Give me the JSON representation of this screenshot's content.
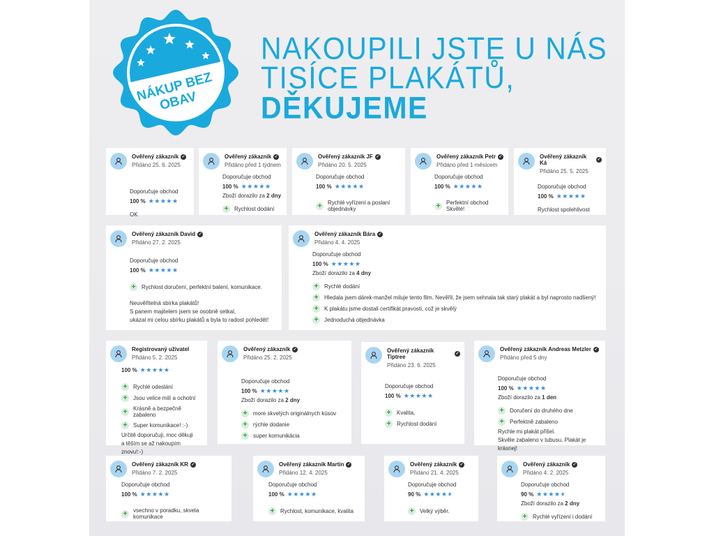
{
  "badge": {
    "line1": "NÁKUP BEZ",
    "line2": "OBAV",
    "color": "#1aa9dc",
    "stars": 5
  },
  "headline": {
    "line1": "NAKOUPILI JSTE U NÁS",
    "line2": "TISÍCE PLAKÁTŮ,",
    "line3": "DĚKUJEME",
    "color": "#1aa9dc"
  },
  "colors": {
    "star": "#3b8ed8",
    "avatar": "#a9d5f2",
    "plus": "#2f9a3e"
  },
  "reviews": [
    {
      "name": "Ověřený zákazník",
      "verified": true,
      "date": "Přidáno 25. 6. 2025",
      "recommend": "Doporučuje obchod",
      "percent": "100 %",
      "rating": 5,
      "pros": [],
      "text": [
        "OK"
      ]
    },
    {
      "name": "Ověřený zákazník",
      "verified": true,
      "date": "Přidáno před 1 týdnem",
      "recommend": "Doporučuje obchod",
      "percent": "100 %",
      "rating": 5,
      "delivery_prefix": "Zboží dorazilo za",
      "delivery_value": "2 dny",
      "pros": [
        "Rychlost dodání"
      ],
      "text": []
    },
    {
      "name": "Ověřený zákazník JF",
      "verified": true,
      "date": "Přidáno 20. 5. 2025",
      "recommend": "Doporučuje obchod",
      "percent": "100 %",
      "rating": 5,
      "pros": [
        "Rychlé vyřízení a poslaní objednávky"
      ],
      "text": []
    },
    {
      "name": "Ověřený zákazník Petr",
      "verified": true,
      "date": "Přidáno před 1 měsícem",
      "recommend": "Doporučuje obchod",
      "percent": "100 %",
      "rating": 5,
      "pros": [
        "Perfektní obchod Skvělé!"
      ],
      "text": []
    },
    {
      "name": "Ověřený zákazník Ká",
      "verified": true,
      "date": "Přidáno 25. 5. 2025",
      "recommend": "Doporučuje obchod",
      "percent": "100 %",
      "rating": 5,
      "pros": [],
      "text": [
        "Rychlost spolehlivost"
      ]
    },
    {
      "name": "Ověřený zákazník David",
      "verified": true,
      "date": "Přidáno 27. 2. 2025",
      "recommend": "Doporučuje obchod",
      "percent": "100 %",
      "rating": 5,
      "pros": [
        "Rychlost doručení, perfektní balení, komunikace."
      ],
      "text": [
        "Neuvěřitelná sbírka plakátů!",
        "S panem majitelem jsem se osobně setkal,",
        "ukázal mi celou sbírku plakátů a byla to radost pohledět!"
      ]
    },
    {
      "name": "Ověřený zákazník Bára",
      "verified": true,
      "date": "Přidáno 4. 4. 2025",
      "recommend": "Doporučuje obchod",
      "percent": "100 %",
      "rating": 5,
      "delivery_prefix": "Zboží dorazilo za",
      "delivery_value": "4 dny",
      "pros": [
        "Rychlé dodání",
        "Hledala jsem dárek-manžel miluje tento film. Nevěřil, že jsem sehnala tak starý plakát a byl naprosto nadšený!",
        "K plakátu jsme dostali certifikát pravosti, což je skvělý",
        "Jednoduchá objednávka"
      ],
      "text": []
    },
    {
      "name": "Registrovaný uživatel",
      "verified": false,
      "date": "Přidáno 5. 2. 2025",
      "percent": "100 %",
      "rating": 5,
      "pros": [
        "Rychlé odeslání",
        "Jsou velice milí a ochotní",
        "Krásně a bezpečně zabaleno",
        "Super komunikace! :-)"
      ],
      "text": [
        "Určitě doporučuji, moc děkuji",
        "a těším se až nakoupím znovu!:-)"
      ]
    },
    {
      "name": "Ověřený zákazník",
      "verified": true,
      "date": "Přidáno 25. 2. 2025",
      "recommend": "Doporučuje obchod",
      "percent": "100 %",
      "rating": 5,
      "delivery_prefix": "Zboží dorazilo za",
      "delivery_value": "2 dny",
      "pros": [
        "more skvelých originálnych kúsov",
        "rýchle dodanie",
        "super komunikácia"
      ],
      "text": []
    },
    {
      "name": "Ověřený zákazník Tiptree",
      "verified": true,
      "date": "Přidáno 23. 6. 2025",
      "recommend": "Doporučuje obchod",
      "percent": "100 %",
      "rating": 5,
      "pros": [
        "Kvalita,",
        "Rychlost dodání"
      ],
      "text": []
    },
    {
      "name": "Ověřený zákazník Andreas Metzler",
      "verified": true,
      "date": "Přidáno před 5 dny",
      "recommend": "Doporučuje obchod",
      "percent": "100 %",
      "rating": 5,
      "delivery_prefix": "Zboží dorazilo za",
      "delivery_value": "1 den",
      "pros": [
        "Doručení do druhého dne",
        "Perfektně zabaleno"
      ],
      "text": [
        "Rychle mi plakát přišel.",
        "Skvěle zabaleno v tubusu. Plakát je krásnej!"
      ]
    },
    {
      "name": "Ověřený zákazník KR",
      "verified": true,
      "date": "Přidáno 7. 2. 2025",
      "recommend": "Doporučuje obchod",
      "percent": "100 %",
      "rating": 5,
      "pros": [
        "vsechno v poradku, skvela komunikace"
      ],
      "text": []
    },
    {
      "name": "Ověřený zákazník Martin",
      "verified": true,
      "date": "Přidáno 12. 4. 2025",
      "recommend": "Doporučuje obchod",
      "percent": "100 %",
      "rating": 5,
      "pros": [
        "Rychlost, komunikace, kvalita"
      ],
      "text": []
    },
    {
      "name": "Ověřený zákazník",
      "verified": true,
      "date": "Přidáno 21. 4. 2025",
      "recommend": "Doporučuje obchod",
      "percent": "90 %",
      "rating": 4.5,
      "pros": [
        "Velký výběr."
      ],
      "text": []
    },
    {
      "name": "Ověřený zákazník",
      "verified": true,
      "date": "Přidáno 4. 2. 2025",
      "recommend": "Doporučuje obchod",
      "percent": "90 %",
      "rating": 4.5,
      "delivery_prefix": "Zboží dorazilo za",
      "delivery_value": "2 dny",
      "pros": [
        "Rychlé vyřízení i dodání"
      ],
      "text": []
    }
  ]
}
